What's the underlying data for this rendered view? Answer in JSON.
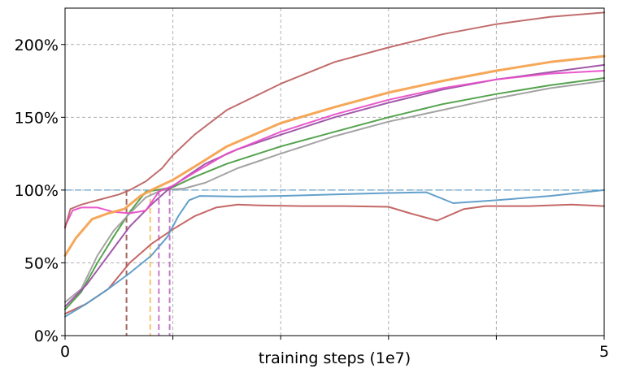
{
  "chart_data": {
    "type": "line",
    "title": "",
    "xlabel": "training steps (1e7)",
    "ylabel": "",
    "xlim": [
      0,
      5
    ],
    "ylim": [
      0,
      2.25
    ],
    "x_ticks": [
      {
        "value": 0,
        "label": "0"
      },
      {
        "value": 1,
        "label": ""
      },
      {
        "value": 2,
        "label": ""
      },
      {
        "value": 3,
        "label": ""
      },
      {
        "value": 4,
        "label": ""
      },
      {
        "value": 5,
        "label": "5"
      }
    ],
    "y_ticks": [
      {
        "value": 0,
        "label": "0%"
      },
      {
        "value": 0.5,
        "label": "50%"
      },
      {
        "value": 1.0,
        "label": "100%"
      },
      {
        "value": 1.5,
        "label": "150%"
      },
      {
        "value": 2.0,
        "label": "200%"
      }
    ],
    "grid": true,
    "reference_line": {
      "y": 1.0,
      "color": "#7fb3d5"
    },
    "threshold_markers": [
      {
        "x": 0.57,
        "y": 1.0,
        "color": "#a1665e"
      },
      {
        "x": 0.79,
        "y": 1.0,
        "color": "#f5c577"
      },
      {
        "x": 0.87,
        "y": 1.0,
        "color": "#c77ac7"
      },
      {
        "x": 0.97,
        "y": 1.0,
        "color": "#c77ac7"
      }
    ],
    "series": [
      {
        "color": "#c0605e",
        "width": 2,
        "points": [
          [
            0,
            0.15
          ],
          [
            0.2,
            0.22
          ],
          [
            0.4,
            0.32
          ],
          [
            0.6,
            0.5
          ],
          [
            0.8,
            0.63
          ],
          [
            1.0,
            0.73
          ],
          [
            1.2,
            0.82
          ],
          [
            1.4,
            0.88
          ],
          [
            1.6,
            0.9
          ],
          [
            1.8,
            0.895
          ],
          [
            2.2,
            0.89
          ],
          [
            2.6,
            0.89
          ],
          [
            3.0,
            0.885
          ],
          [
            3.2,
            0.84
          ],
          [
            3.45,
            0.79
          ],
          [
            3.7,
            0.87
          ],
          [
            3.9,
            0.89
          ],
          [
            4.3,
            0.89
          ],
          [
            4.7,
            0.9
          ],
          [
            5.0,
            0.89
          ]
        ]
      },
      {
        "color": "#5b9bc8",
        "width": 2,
        "points": [
          [
            0,
            0.13
          ],
          [
            0.2,
            0.22
          ],
          [
            0.4,
            0.32
          ],
          [
            0.6,
            0.43
          ],
          [
            0.8,
            0.55
          ],
          [
            0.95,
            0.68
          ],
          [
            1.05,
            0.82
          ],
          [
            1.15,
            0.93
          ],
          [
            1.25,
            0.96
          ],
          [
            1.6,
            0.955
          ],
          [
            2.0,
            0.96
          ],
          [
            2.5,
            0.97
          ],
          [
            3.0,
            0.98
          ],
          [
            3.35,
            0.985
          ],
          [
            3.6,
            0.91
          ],
          [
            4.0,
            0.93
          ],
          [
            4.5,
            0.96
          ],
          [
            5.0,
            1.0
          ]
        ]
      },
      {
        "color": "#4c9e45",
        "width": 2,
        "points": [
          [
            0,
            0.18
          ],
          [
            0.15,
            0.3
          ],
          [
            0.3,
            0.5
          ],
          [
            0.45,
            0.68
          ],
          [
            0.6,
            0.85
          ],
          [
            0.75,
            0.99
          ],
          [
            0.85,
            1.0
          ],
          [
            1.0,
            1.02
          ],
          [
            1.2,
            1.09
          ],
          [
            1.5,
            1.18
          ],
          [
            2.0,
            1.3
          ],
          [
            2.5,
            1.4
          ],
          [
            3.0,
            1.5
          ],
          [
            3.5,
            1.59
          ],
          [
            4.0,
            1.66
          ],
          [
            4.5,
            1.72
          ],
          [
            5.0,
            1.77
          ]
        ]
      },
      {
        "color": "#9e9e9e",
        "width": 2,
        "points": [
          [
            0,
            0.23
          ],
          [
            0.15,
            0.32
          ],
          [
            0.3,
            0.55
          ],
          [
            0.45,
            0.72
          ],
          [
            0.6,
            0.84
          ],
          [
            0.75,
            0.95
          ],
          [
            0.9,
            1.0
          ],
          [
            1.1,
            1.01
          ],
          [
            1.3,
            1.05
          ],
          [
            1.6,
            1.15
          ],
          [
            2.0,
            1.25
          ],
          [
            2.5,
            1.37
          ],
          [
            3.0,
            1.47
          ],
          [
            3.5,
            1.55
          ],
          [
            4.0,
            1.63
          ],
          [
            4.5,
            1.7
          ],
          [
            5.0,
            1.75
          ]
        ]
      },
      {
        "color": "#9c4fa5",
        "width": 2,
        "points": [
          [
            0,
            0.2
          ],
          [
            0.2,
            0.35
          ],
          [
            0.4,
            0.55
          ],
          [
            0.6,
            0.75
          ],
          [
            0.8,
            0.9
          ],
          [
            0.95,
            1.0
          ],
          [
            1.1,
            1.08
          ],
          [
            1.3,
            1.18
          ],
          [
            1.6,
            1.28
          ],
          [
            2.0,
            1.38
          ],
          [
            2.5,
            1.5
          ],
          [
            3.0,
            1.6
          ],
          [
            3.5,
            1.69
          ],
          [
            4.0,
            1.76
          ],
          [
            4.5,
            1.81
          ],
          [
            5.0,
            1.86
          ]
        ]
      },
      {
        "color": "#e84fc8",
        "width": 2,
        "points": [
          [
            0,
            0.75
          ],
          [
            0.07,
            0.86
          ],
          [
            0.15,
            0.88
          ],
          [
            0.3,
            0.88
          ],
          [
            0.45,
            0.85
          ],
          [
            0.6,
            0.84
          ],
          [
            0.75,
            0.86
          ],
          [
            0.87,
            0.99
          ],
          [
            1.0,
            1.03
          ],
          [
            1.2,
            1.12
          ],
          [
            1.5,
            1.25
          ],
          [
            2.0,
            1.4
          ],
          [
            2.5,
            1.52
          ],
          [
            3.0,
            1.62
          ],
          [
            3.5,
            1.7
          ],
          [
            4.0,
            1.76
          ],
          [
            4.5,
            1.8
          ],
          [
            5.0,
            1.82
          ]
        ]
      },
      {
        "color": "#f5a24f",
        "width": 3,
        "points": [
          [
            0,
            0.55
          ],
          [
            0.1,
            0.67
          ],
          [
            0.25,
            0.8
          ],
          [
            0.4,
            0.84
          ],
          [
            0.55,
            0.87
          ],
          [
            0.7,
            0.96
          ],
          [
            0.8,
            1.0
          ],
          [
            1.0,
            1.07
          ],
          [
            1.2,
            1.16
          ],
          [
            1.5,
            1.3
          ],
          [
            2.0,
            1.46
          ],
          [
            2.5,
            1.57
          ],
          [
            3.0,
            1.67
          ],
          [
            3.5,
            1.75
          ],
          [
            4.0,
            1.82
          ],
          [
            4.5,
            1.88
          ],
          [
            5.0,
            1.92
          ]
        ]
      },
      {
        "color": "#bf6464",
        "width": 2,
        "points": [
          [
            0,
            0.74
          ],
          [
            0.05,
            0.87
          ],
          [
            0.15,
            0.9
          ],
          [
            0.3,
            0.93
          ],
          [
            0.5,
            0.97
          ],
          [
            0.6,
            1.0
          ],
          [
            0.75,
            1.06
          ],
          [
            0.9,
            1.15
          ],
          [
            1.0,
            1.24
          ],
          [
            1.2,
            1.38
          ],
          [
            1.5,
            1.55
          ],
          [
            2.0,
            1.73
          ],
          [
            2.5,
            1.88
          ],
          [
            3.0,
            1.98
          ],
          [
            3.5,
            2.07
          ],
          [
            4.0,
            2.14
          ],
          [
            4.5,
            2.19
          ],
          [
            5.0,
            2.22
          ]
        ]
      }
    ]
  }
}
